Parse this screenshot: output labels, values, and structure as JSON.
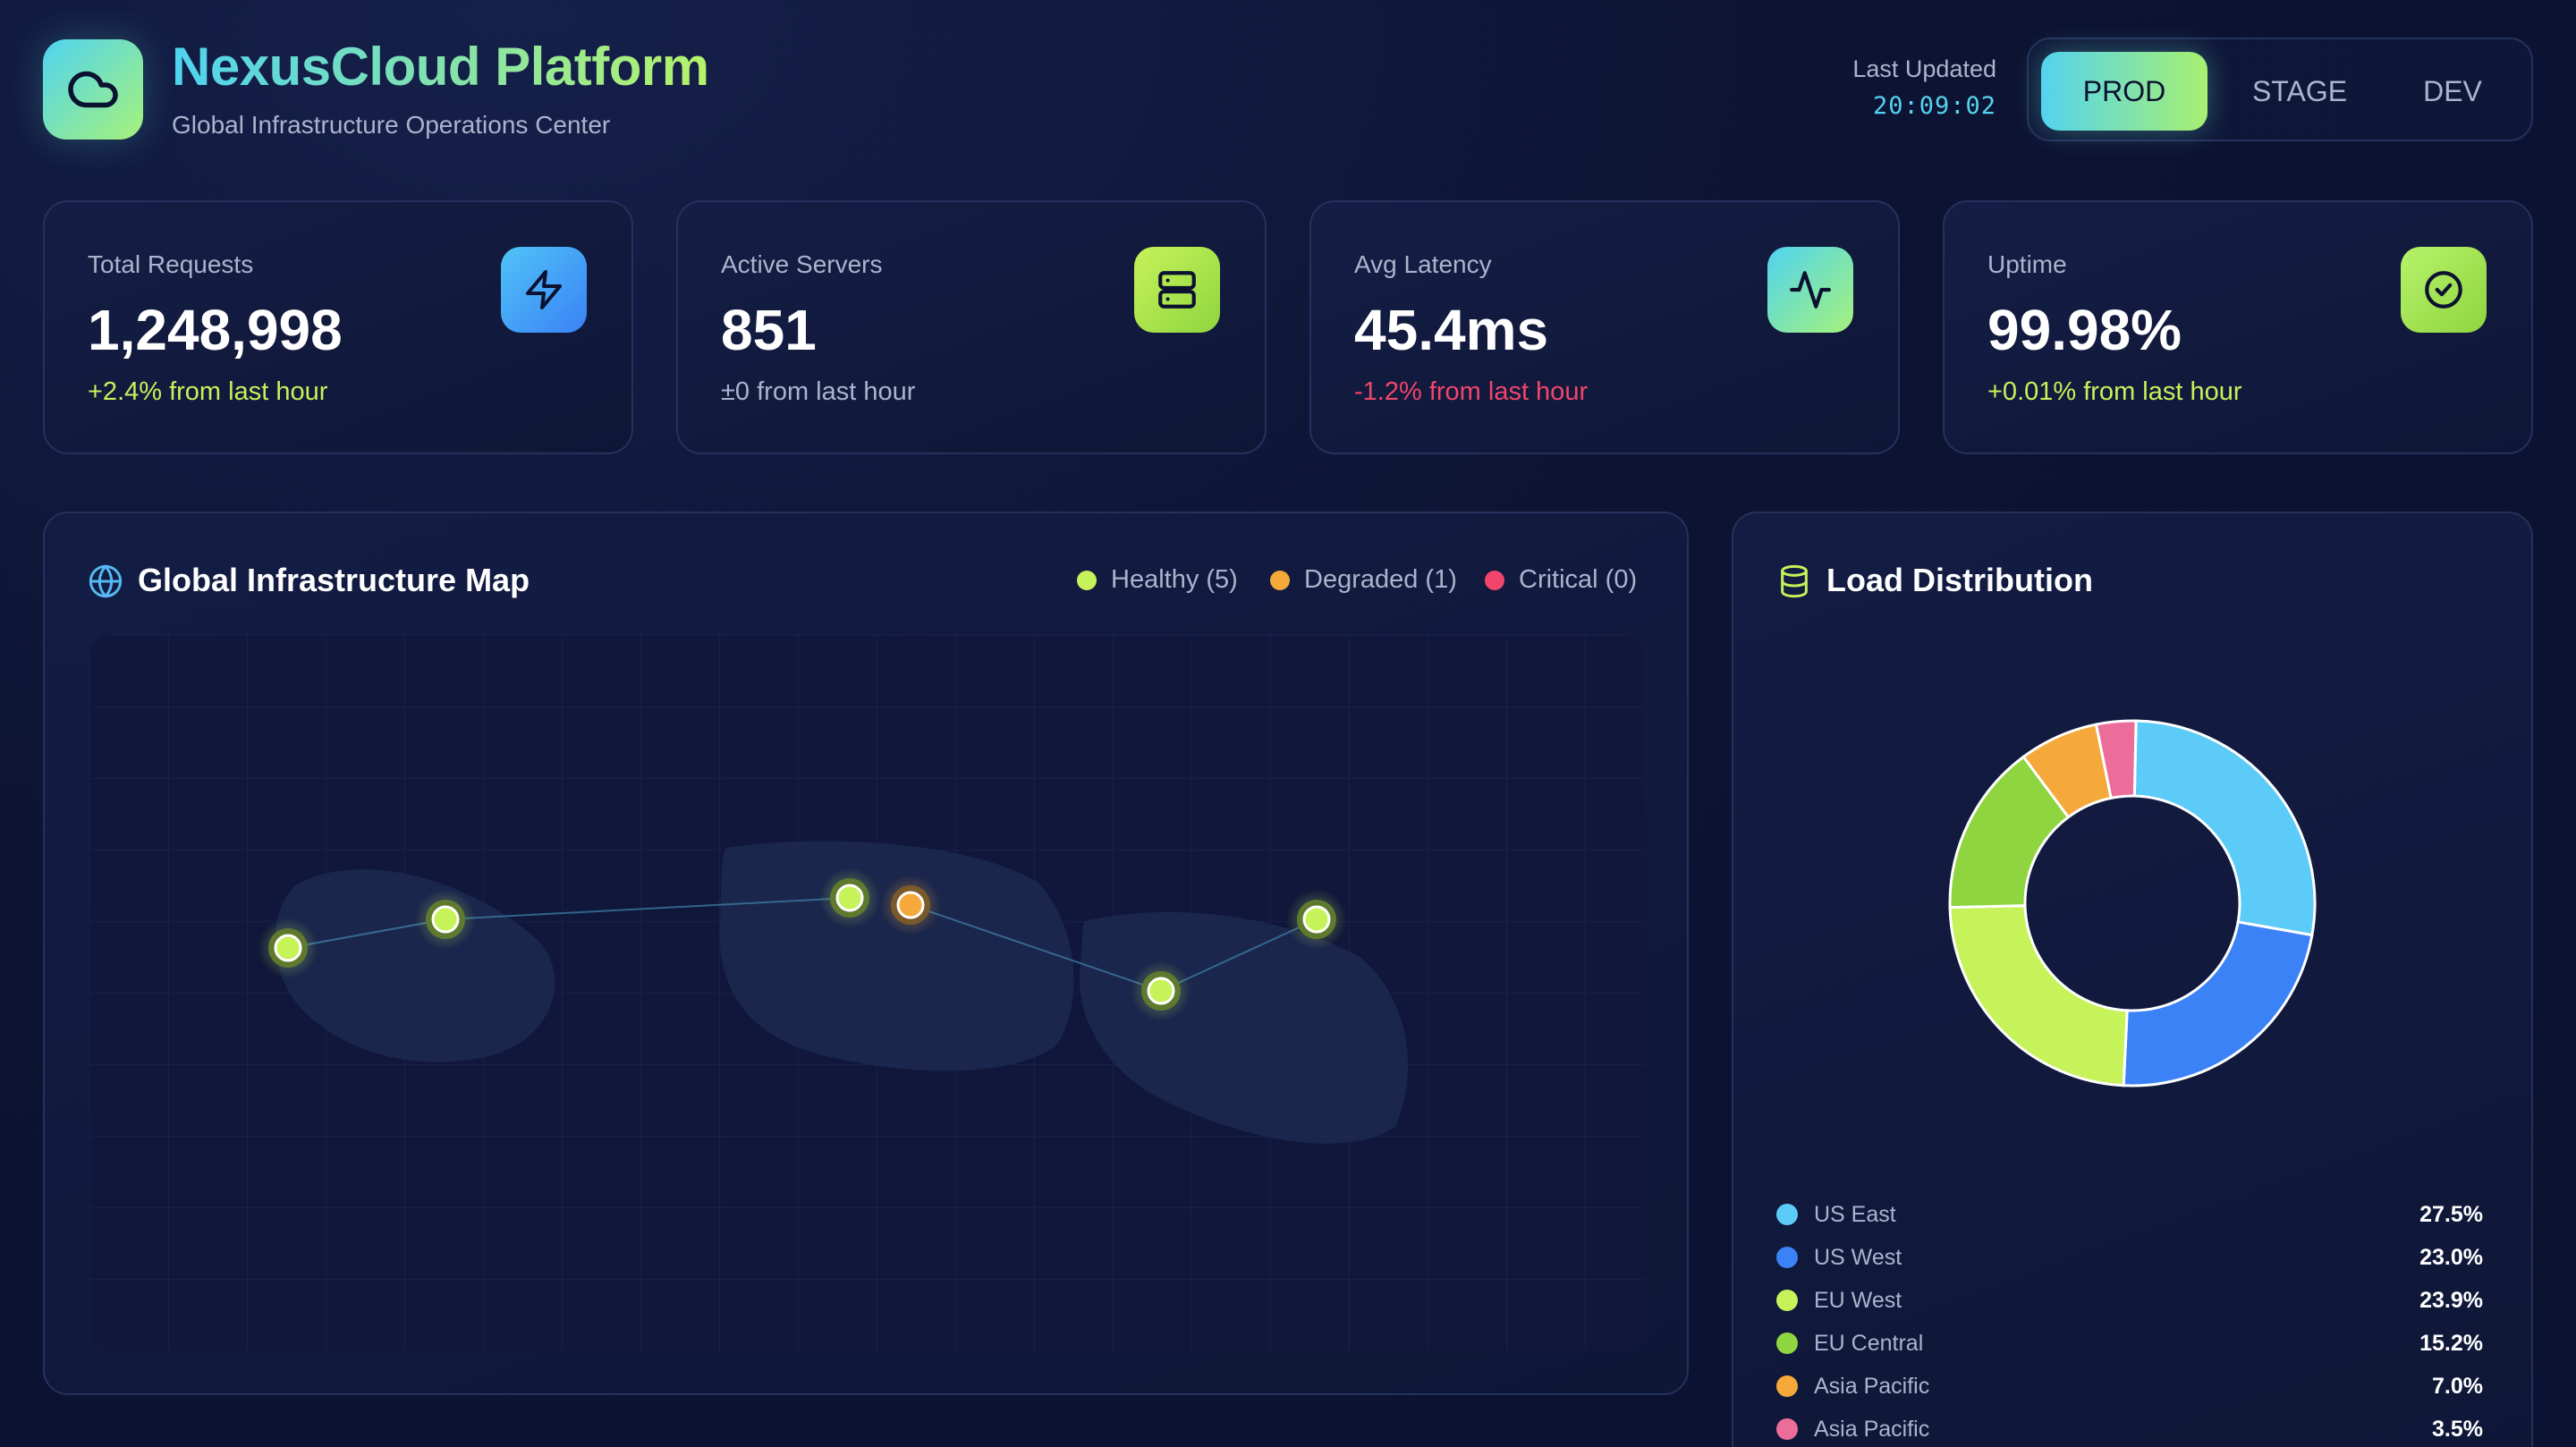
{
  "header": {
    "title": "NexusCloud Platform",
    "subtitle": "Global Infrastructure Operations Center",
    "last_updated_label": "Last Updated",
    "last_updated_time": "20:09:02",
    "environments": [
      "PROD",
      "STAGE",
      "DEV"
    ],
    "active_environment": "PROD"
  },
  "stats": [
    {
      "label": "Total Requests",
      "value": "1,248,998",
      "change": "+2.4% from last hour",
      "trend": "up",
      "icon": "lightning-icon"
    },
    {
      "label": "Active Servers",
      "value": "851",
      "change": "±0 from last hour",
      "trend": "flat",
      "icon": "server-icon"
    },
    {
      "label": "Avg Latency",
      "value": "45.4ms",
      "change": "-1.2% from last hour",
      "trend": "down",
      "icon": "activity-icon"
    },
    {
      "label": "Uptime",
      "value": "99.98%",
      "change": "+0.01% from last hour",
      "trend": "up",
      "icon": "check-circle-icon"
    }
  ],
  "map": {
    "title": "Global Infrastructure Map",
    "legend": [
      {
        "label": "Healthy (5)",
        "color": "#c6f25a"
      },
      {
        "label": "Degraded (1)",
        "color": "#f4a93a"
      },
      {
        "label": "Critical (0)",
        "color": "#f2456b"
      }
    ],
    "node_statuses": [
      "healthy",
      "healthy",
      "healthy",
      "degraded",
      "healthy",
      "healthy"
    ]
  },
  "load_distribution": {
    "title": "Load Distribution",
    "chart_data": {
      "type": "pie",
      "title": "Load Distribution",
      "categories": [
        "US East",
        "US West",
        "EU West",
        "EU Central",
        "Asia Pacific",
        "Asia Pacific"
      ],
      "values": [
        27.5,
        23.0,
        23.9,
        15.2,
        7.0,
        3.5
      ],
      "labels": [
        "27.5%",
        "23.0%",
        "23.9%",
        "15.2%",
        "7.0%",
        "3.5%"
      ],
      "colors": [
        "#5ccbf7",
        "#3b82f6",
        "#c6f25a",
        "#8fd53f",
        "#f4a93a",
        "#ec6d99"
      ]
    }
  },
  "colors": {
    "accent_cyan": "#55d2f0",
    "accent_lime": "#a8f070",
    "positive": "#c6f25a",
    "negative": "#f2456b",
    "neutral": "#aab4cc"
  }
}
